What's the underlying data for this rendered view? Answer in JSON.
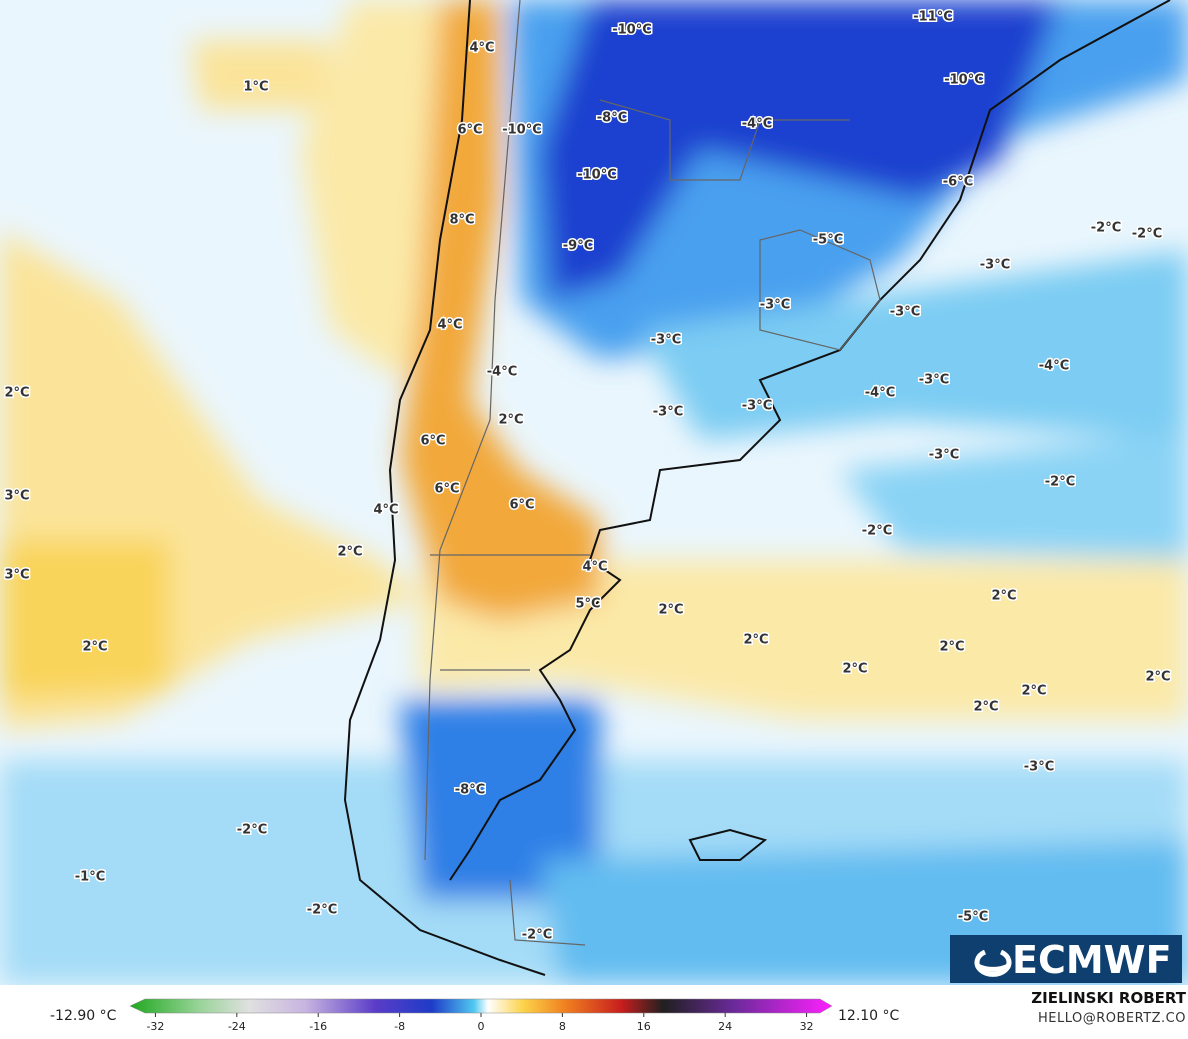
{
  "map_labels": [
    "-10°C",
    "-11°C",
    "4°C",
    "1°C",
    "-10°C",
    "6°C",
    "-10°C",
    "-8°C",
    "-4°C",
    "-10°C",
    "-6°C",
    "8°C",
    "-9°C",
    "-5°C",
    "-2°C",
    "-2°C",
    "-3°C",
    "-3°C",
    "-3°C",
    "4°C",
    "-3°C",
    "-4°C",
    "-4°C",
    "-3°C",
    "-4°C",
    "2°C",
    "2°C",
    "-3°C",
    "-3°C",
    "6°C",
    "-3°C",
    "-2°C",
    "3°C",
    "6°C",
    "4°C",
    "6°C",
    "-2°C",
    "2°C",
    "3°C",
    "4°C",
    "5°C",
    "2°C",
    "2°C",
    "2°C",
    "2°C",
    "2°C",
    "2°C",
    "2°C",
    "2°C",
    "2°C",
    "-3°C",
    "-8°C",
    "-2°C",
    "-1°C",
    "-2°C",
    "-5°C",
    "-2°C"
  ],
  "colorbar": {
    "lim": [
      -34.5,
      34.5
    ],
    "ticks": [
      -32,
      -24,
      -16,
      -8,
      0,
      8,
      16,
      24,
      32
    ],
    "min_label": "-12.90 °C",
    "max_label": "12.10 °C"
  },
  "logo": "ECMWF",
  "credit": {
    "author": "ZIELINSKI ROBERT",
    "contact": "HELLO@ROBERTZ.CO"
  }
}
